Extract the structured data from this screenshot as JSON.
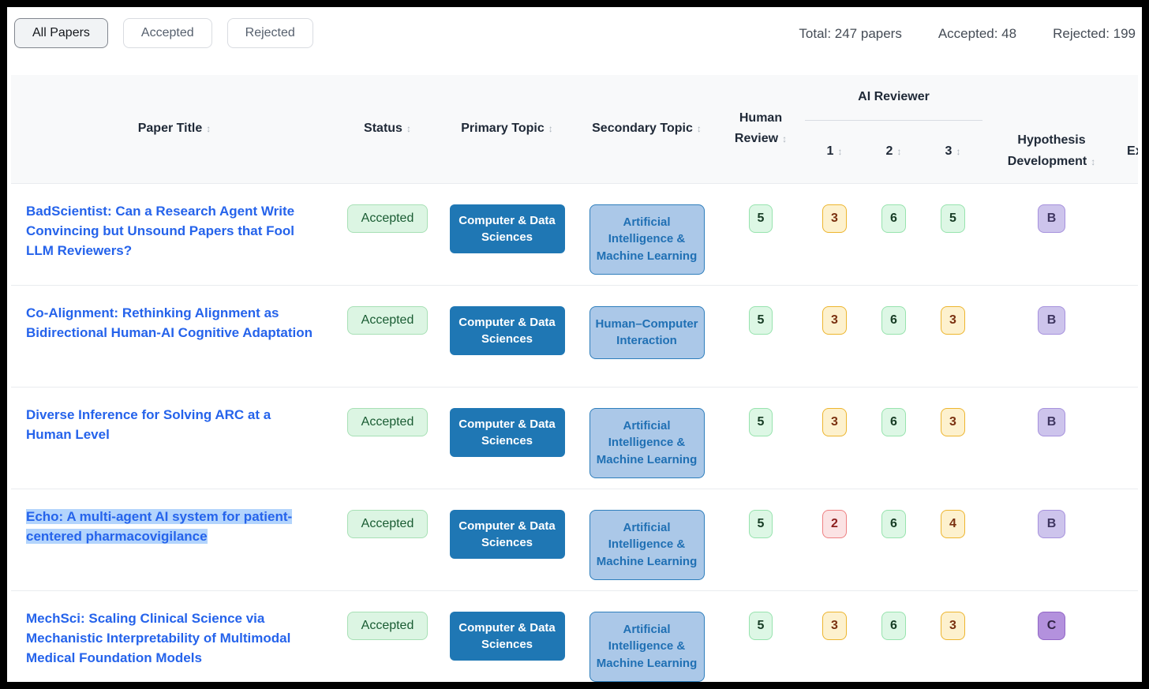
{
  "toolbar": {
    "filters": [
      {
        "label": "All Papers",
        "active": true
      },
      {
        "label": "Accepted",
        "active": false
      },
      {
        "label": "Rejected",
        "active": false
      }
    ],
    "stats": [
      {
        "label": "Total: 247 papers"
      },
      {
        "label": "Accepted: 48"
      },
      {
        "label": "Rejected: 199"
      }
    ]
  },
  "table": {
    "sort_icon": "↕",
    "headers": {
      "paper_title": "Paper Title",
      "status": "Status",
      "primary_topic": "Primary Topic",
      "secondary_topic": "Secondary Topic",
      "human_review": "Human Review",
      "ai_reviewer_group": "AI Reviewer",
      "ai_reviewer_1": "1",
      "ai_reviewer_2": "2",
      "ai_reviewer_3": "3",
      "hypothesis_development": "Hypothesis Development",
      "experiment_truncated": "Ex"
    },
    "rows": [
      {
        "title": "BadScientist: Can a Research Agent Write Convincing but Unsound Papers that Fool LLM Reviewers?",
        "selected": false,
        "status": "Accepted",
        "primary_topic": "Computer & Data Sciences",
        "secondary_topic": "Artificial Intelligence & Machine Learning",
        "human_review": {
          "value": "5",
          "color": "green"
        },
        "ai_reviews": [
          {
            "value": "3",
            "color": "yellow"
          },
          {
            "value": "6",
            "color": "green"
          },
          {
            "value": "5",
            "color": "green"
          }
        ],
        "hypothesis_development": {
          "value": "B",
          "color": "purple-light"
        }
      },
      {
        "title": "Co-Alignment: Rethinking Alignment as Bidirectional Human-AI Cognitive Adaptation",
        "selected": false,
        "status": "Accepted",
        "primary_topic": "Computer & Data Sciences",
        "secondary_topic": "Human–Computer Interaction",
        "human_review": {
          "value": "5",
          "color": "green"
        },
        "ai_reviews": [
          {
            "value": "3",
            "color": "yellow"
          },
          {
            "value": "6",
            "color": "green"
          },
          {
            "value": "3",
            "color": "yellow"
          }
        ],
        "hypothesis_development": {
          "value": "B",
          "color": "purple-light"
        }
      },
      {
        "title": "Diverse Inference for Solving ARC at a Human Level",
        "selected": false,
        "status": "Accepted",
        "primary_topic": "Computer & Data Sciences",
        "secondary_topic": "Artificial Intelligence & Machine Learning",
        "human_review": {
          "value": "5",
          "color": "green"
        },
        "ai_reviews": [
          {
            "value": "3",
            "color": "yellow"
          },
          {
            "value": "6",
            "color": "green"
          },
          {
            "value": "3",
            "color": "yellow"
          }
        ],
        "hypothesis_development": {
          "value": "B",
          "color": "purple-light"
        }
      },
      {
        "title": "Echo: A multi-agent AI system for patient-centered pharmacovigilance",
        "selected": true,
        "status": "Accepted",
        "primary_topic": "Computer & Data Sciences",
        "secondary_topic": "Artificial Intelligence & Machine Learning",
        "human_review": {
          "value": "5",
          "color": "green"
        },
        "ai_reviews": [
          {
            "value": "2",
            "color": "red"
          },
          {
            "value": "6",
            "color": "green"
          },
          {
            "value": "4",
            "color": "yellow"
          }
        ],
        "hypothesis_development": {
          "value": "B",
          "color": "purple-light"
        }
      },
      {
        "title": "MechSci: Scaling Clinical Science via Mechanistic Interpretability of Multimodal Medical Foundation Models",
        "selected": false,
        "status": "Accepted",
        "primary_topic": "Computer & Data Sciences",
        "secondary_topic": "Artificial Intelligence & Machine Learning",
        "human_review": {
          "value": "5",
          "color": "green"
        },
        "ai_reviews": [
          {
            "value": "3",
            "color": "yellow"
          },
          {
            "value": "6",
            "color": "green"
          },
          {
            "value": "3",
            "color": "yellow"
          }
        ],
        "hypothesis_development": {
          "value": "C",
          "color": "purple-dark"
        }
      }
    ]
  },
  "colors": {
    "primary_topic_bg": "#1f77b4",
    "secondary_topic_bg": "#abc8e8",
    "title_link": "#2563eb",
    "selection_highlight": "#b3d4fc",
    "score_green_bg": "#ddf7e5",
    "score_yellow_bg": "#fdf1ce",
    "score_red_bg": "#fbe3e4",
    "grade_b_bg": "#cdc4ec",
    "grade_c_bg": "#b391dd",
    "status_accepted_bg": "#dcf5e3",
    "header_bg": "#f8f9fa"
  }
}
